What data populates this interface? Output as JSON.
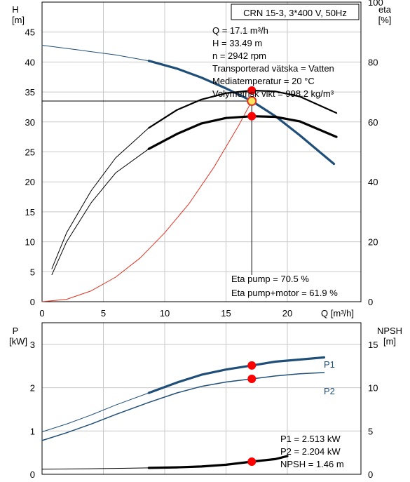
{
  "colors": {
    "head_curve": "#1f4e79",
    "eff_curve": "#000000",
    "system_curve": "#e03020",
    "power_curve": "#1f4e79",
    "marker": "#ff0000",
    "grid": "#c8c8c8"
  },
  "chart_data": [
    {
      "type": "line",
      "title": "CRN 15-3, 3*400 V, 50Hz",
      "left_axis": {
        "label_top": "H",
        "label_unit": "[m]",
        "ticks": [
          "0",
          "5",
          "10",
          "15",
          "20",
          "25",
          "30",
          "35",
          "40",
          "45"
        ],
        "range": [
          0,
          50
        ]
      },
      "right_axis": {
        "label_top": "eta",
        "label_unit": "[%]",
        "ticks": [
          "0",
          "20",
          "40",
          "60",
          "80",
          "100"
        ],
        "range": [
          0,
          100
        ]
      },
      "x_axis": {
        "label": "Q [m³/h]",
        "ticks": [
          "0",
          "5",
          "10",
          "15",
          "20"
        ],
        "range": [
          0,
          26
        ]
      },
      "grid": true,
      "info_lines": [
        "Q = 17.1 m³/h",
        "H = 33.49 m",
        "n = 2942 rpm",
        "Transporterad vätska = Vatten",
        "Mediatemperatur = 20 °C",
        "Volymetrisk vikt = 998.2 kg/m³"
      ],
      "eff_lines": [
        "Eta pump = 70.5 %",
        "Eta pump+motor = 61.9 %"
      ],
      "operating_point": {
        "q": 17.1,
        "h": 33.49,
        "eta_pump": 70.5,
        "eta_total": 61.9
      },
      "series": [
        {
          "key": "head_thin",
          "x": [
            0,
            3,
            6,
            8.7
          ],
          "y": [
            42.8,
            42.0,
            41.2,
            40.2
          ]
        },
        {
          "key": "head_thick",
          "x": [
            8.7,
            11,
            13,
            15,
            17.1,
            19,
            21,
            23.8
          ],
          "y": [
            40.2,
            38.9,
            37.4,
            35.6,
            33.49,
            31.0,
            27.8,
            23.0
          ]
        },
        {
          "key": "eta_pump_thin",
          "x": [
            0.8,
            2,
            4,
            6,
            8.7
          ],
          "y": [
            11,
            23,
            37,
            48,
            58
          ]
        },
        {
          "key": "eta_pump_thick",
          "x": [
            8.7,
            11,
            13,
            15,
            17.1,
            19,
            21,
            24
          ],
          "y": [
            58,
            64,
            67.5,
            69.6,
            70.5,
            70.2,
            68.5,
            63
          ]
        },
        {
          "key": "eta_total_thin",
          "x": [
            0.8,
            2,
            4,
            6,
            8.7
          ],
          "y": [
            9,
            20,
            33,
            43,
            51
          ]
        },
        {
          "key": "eta_total_thick",
          "x": [
            8.7,
            11,
            13,
            15,
            17.1,
            19,
            21,
            24
          ],
          "y": [
            51,
            56,
            59.5,
            61.3,
            61.9,
            61.7,
            60.2,
            55
          ]
        },
        {
          "key": "system",
          "x": [
            0,
            2,
            4,
            6,
            8,
            10,
            12,
            14,
            16,
            17.1
          ],
          "y": [
            0,
            0.4,
            1.8,
            4.1,
            7.3,
            11.5,
            16.4,
            22.4,
            29.3,
            33.49
          ]
        }
      ]
    },
    {
      "type": "line",
      "left_axis": {
        "label_top": "P",
        "label_unit": "[kW]",
        "ticks": [
          "0",
          "1",
          "2",
          "3"
        ],
        "range": [
          0,
          3.5
        ]
      },
      "right_axis": {
        "label_top": "NPSH",
        "label_unit": "[m]",
        "ticks": [
          "0",
          "5",
          "10",
          "15"
        ],
        "range": [
          0,
          17.5
        ]
      },
      "x_axis": {
        "range": [
          0,
          26
        ]
      },
      "grid": true,
      "power_lines": [
        "P1 = 2.513 kW",
        "P2 = 2.204 kW",
        "NPSH = 1.46 m"
      ],
      "series": [
        {
          "key": "p1_thin",
          "name": "P1",
          "x": [
            0,
            2,
            4,
            6,
            8.7
          ],
          "y": [
            0.98,
            1.16,
            1.37,
            1.6,
            1.88
          ]
        },
        {
          "key": "p1_thick",
          "name": "P1",
          "x": [
            8.7,
            11,
            13,
            15,
            17.1,
            19,
            21,
            23
          ],
          "y": [
            1.88,
            2.12,
            2.3,
            2.42,
            2.513,
            2.6,
            2.65,
            2.7
          ]
        },
        {
          "key": "p2",
          "name": "P2",
          "x": [
            0,
            2,
            4,
            6,
            8.7,
            11,
            13,
            15,
            17.1,
            19,
            21,
            23
          ],
          "y": [
            0.78,
            0.96,
            1.16,
            1.38,
            1.66,
            1.88,
            2.03,
            2.13,
            2.204,
            2.27,
            2.32,
            2.35
          ]
        },
        {
          "key": "npsh_thin",
          "x": [
            0,
            3,
            6,
            8.7
          ],
          "y": [
            0.58,
            0.62,
            0.68,
            0.74
          ]
        },
        {
          "key": "npsh_thick",
          "x": [
            8.7,
            11,
            13,
            15,
            17.1,
            19,
            20
          ],
          "y": [
            0.74,
            0.8,
            0.9,
            1.1,
            1.46,
            1.75,
            2.1
          ]
        }
      ],
      "markers": [
        {
          "x": 17.1,
          "y": 2.513
        },
        {
          "x": 17.1,
          "y": 2.204
        },
        {
          "x": 17.1,
          "y": 1.46,
          "axis": "right"
        }
      ]
    }
  ]
}
